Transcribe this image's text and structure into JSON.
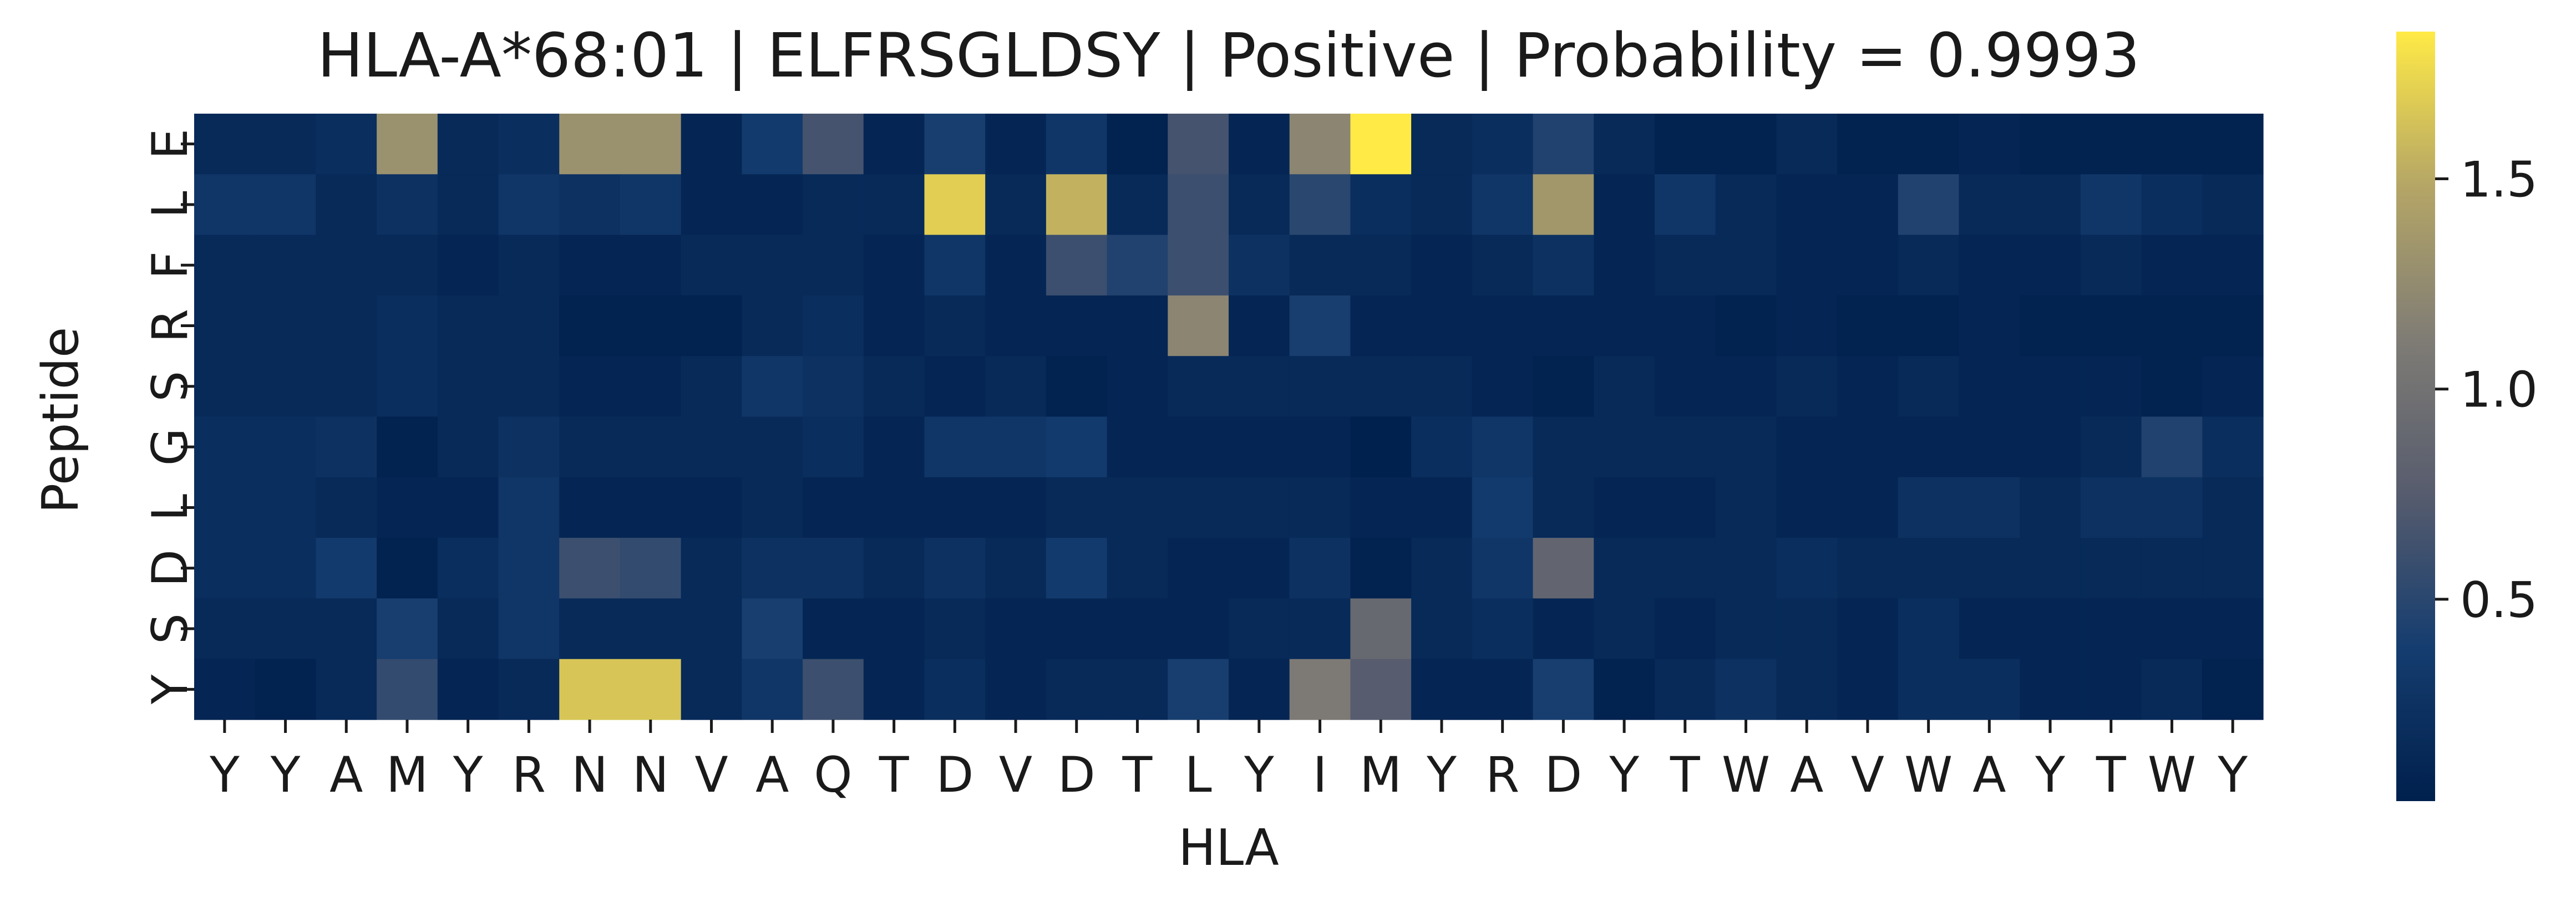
{
  "chart_data": {
    "type": "heatmap",
    "title": "HLA-A*68:01 | ELFRSGLDSY | Positive | Probability = 0.9993",
    "xlabel": "HLA",
    "ylabel": "Peptide",
    "x_categories": [
      "Y",
      "Y",
      "A",
      "M",
      "Y",
      "R",
      "N",
      "N",
      "V",
      "A",
      "Q",
      "T",
      "D",
      "V",
      "D",
      "T",
      "L",
      "Y",
      "I",
      "M",
      "Y",
      "R",
      "D",
      "Y",
      "T",
      "W",
      "A",
      "V",
      "W",
      "A",
      "Y",
      "T",
      "W",
      "Y"
    ],
    "y_categories": [
      "E",
      "L",
      "F",
      "R",
      "S",
      "G",
      "L",
      "D",
      "S",
      "Y"
    ],
    "values": [
      [
        0.15,
        0.15,
        0.2,
        1.3,
        0.15,
        0.2,
        1.3,
        1.3,
        0.1,
        0.35,
        0.65,
        0.1,
        0.4,
        0.1,
        0.3,
        0.05,
        0.65,
        0.1,
        1.2,
        1.85,
        0.15,
        0.2,
        0.45,
        0.15,
        0.05,
        0.05,
        0.15,
        0.05,
        0.05,
        0.1,
        0.05,
        0.05,
        0.05,
        0.05
      ],
      [
        0.3,
        0.3,
        0.15,
        0.25,
        0.15,
        0.3,
        0.25,
        0.3,
        0.1,
        0.1,
        0.15,
        0.15,
        1.7,
        0.15,
        1.55,
        0.15,
        0.6,
        0.15,
        0.5,
        0.2,
        0.15,
        0.3,
        1.35,
        0.1,
        0.3,
        0.15,
        0.1,
        0.1,
        0.45,
        0.15,
        0.15,
        0.3,
        0.2,
        0.15
      ],
      [
        0.15,
        0.15,
        0.15,
        0.15,
        0.1,
        0.15,
        0.1,
        0.1,
        0.15,
        0.15,
        0.15,
        0.1,
        0.3,
        0.1,
        0.6,
        0.45,
        0.6,
        0.25,
        0.15,
        0.15,
        0.1,
        0.15,
        0.25,
        0.1,
        0.15,
        0.15,
        0.1,
        0.1,
        0.15,
        0.1,
        0.1,
        0.15,
        0.1,
        0.1
      ],
      [
        0.15,
        0.15,
        0.15,
        0.2,
        0.15,
        0.15,
        0.05,
        0.05,
        0.05,
        0.15,
        0.2,
        0.1,
        0.15,
        0.1,
        0.1,
        0.1,
        1.2,
        0.1,
        0.4,
        0.1,
        0.1,
        0.1,
        0.1,
        0.1,
        0.1,
        0.05,
        0.1,
        0.05,
        0.05,
        0.1,
        0.05,
        0.05,
        0.05,
        0.05
      ],
      [
        0.15,
        0.15,
        0.15,
        0.2,
        0.15,
        0.15,
        0.1,
        0.1,
        0.15,
        0.3,
        0.25,
        0.15,
        0.1,
        0.15,
        0.05,
        0.1,
        0.15,
        0.15,
        0.15,
        0.15,
        0.15,
        0.1,
        0.05,
        0.15,
        0.1,
        0.1,
        0.15,
        0.1,
        0.15,
        0.1,
        0.1,
        0.1,
        0.05,
        0.1
      ],
      [
        0.2,
        0.2,
        0.25,
        0.05,
        0.15,
        0.25,
        0.15,
        0.15,
        0.15,
        0.15,
        0.2,
        0.1,
        0.3,
        0.3,
        0.35,
        0.1,
        0.1,
        0.1,
        0.1,
        0.02,
        0.2,
        0.3,
        0.15,
        0.15,
        0.15,
        0.15,
        0.1,
        0.1,
        0.1,
        0.1,
        0.1,
        0.15,
        0.45,
        0.2
      ],
      [
        0.2,
        0.2,
        0.15,
        0.1,
        0.1,
        0.3,
        0.1,
        0.1,
        0.1,
        0.15,
        0.1,
        0.1,
        0.1,
        0.1,
        0.15,
        0.15,
        0.15,
        0.15,
        0.15,
        0.1,
        0.1,
        0.35,
        0.15,
        0.1,
        0.1,
        0.15,
        0.1,
        0.1,
        0.25,
        0.25,
        0.15,
        0.25,
        0.25,
        0.15
      ],
      [
        0.2,
        0.2,
        0.35,
        0.05,
        0.2,
        0.3,
        0.6,
        0.55,
        0.15,
        0.25,
        0.25,
        0.15,
        0.25,
        0.15,
        0.35,
        0.15,
        0.1,
        0.1,
        0.25,
        0.05,
        0.15,
        0.3,
        0.85,
        0.15,
        0.15,
        0.15,
        0.2,
        0.15,
        0.15,
        0.15,
        0.15,
        0.15,
        0.15,
        0.15
      ],
      [
        0.15,
        0.15,
        0.15,
        0.4,
        0.15,
        0.3,
        0.15,
        0.15,
        0.15,
        0.4,
        0.1,
        0.1,
        0.15,
        0.1,
        0.1,
        0.1,
        0.1,
        0.15,
        0.15,
        0.9,
        0.15,
        0.2,
        0.1,
        0.15,
        0.1,
        0.15,
        0.15,
        0.1,
        0.2,
        0.1,
        0.1,
        0.1,
        0.1,
        0.1
      ],
      [
        0.1,
        0.05,
        0.15,
        0.55,
        0.1,
        0.15,
        1.65,
        1.65,
        0.15,
        0.3,
        0.6,
        0.1,
        0.2,
        0.1,
        0.15,
        0.15,
        0.4,
        0.1,
        1.1,
        0.75,
        0.1,
        0.1,
        0.4,
        0.05,
        0.15,
        0.25,
        0.15,
        0.1,
        0.2,
        0.2,
        0.1,
        0.1,
        0.15,
        0.05
      ]
    ],
    "colorbar": {
      "colormap": "cividis",
      "vmin": 0.02,
      "vmax": 1.85,
      "ticks": [
        0.5,
        1.0,
        1.5
      ],
      "tick_labels": [
        "0.5",
        "1.0",
        "1.5"
      ]
    }
  }
}
